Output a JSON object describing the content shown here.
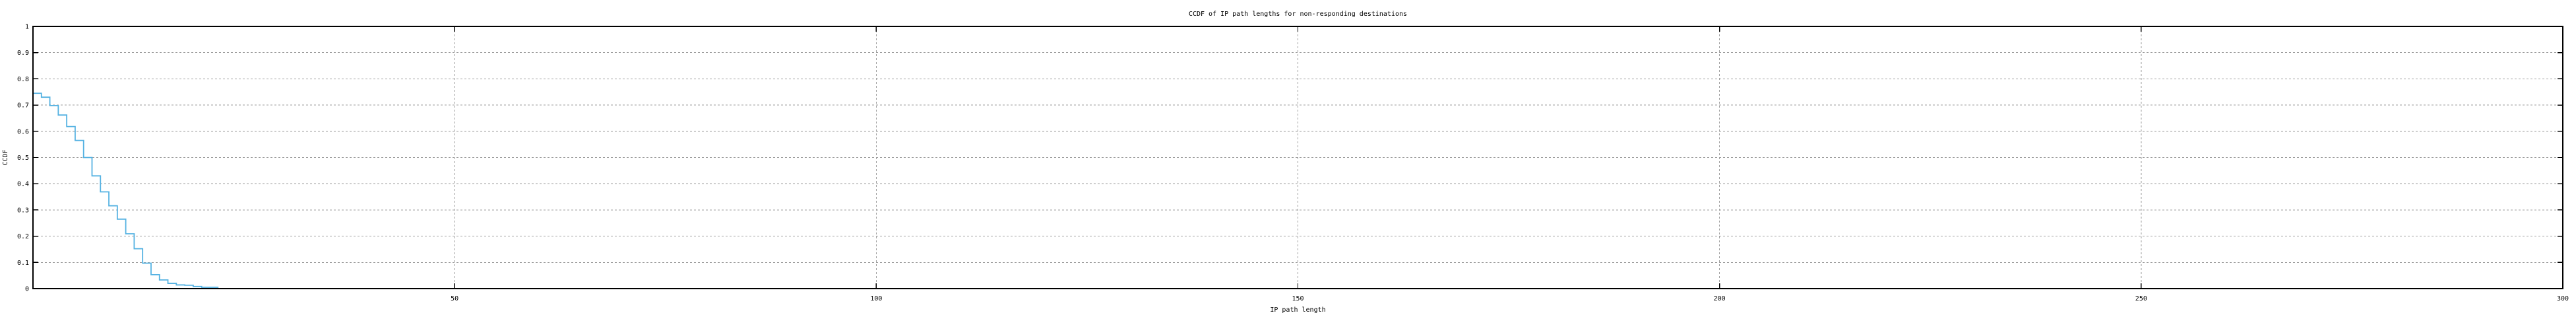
{
  "chart_data": {
    "type": "line",
    "style": "steps",
    "title": "CCDF of IP path lengths for non-responding destinations",
    "xlabel": "IP path length",
    "ylabel": "CCDF",
    "xlim": [
      0,
      300
    ],
    "ylim": [
      0,
      1
    ],
    "grid": {
      "show": true,
      "color": "#9e9e9e"
    },
    "legend": {
      "show": false
    },
    "x_ticks": [
      {
        "value": 50,
        "label": "50"
      },
      {
        "value": 100,
        "label": "100"
      },
      {
        "value": 150,
        "label": "150"
      },
      {
        "value": 200,
        "label": "200"
      },
      {
        "value": 250,
        "label": "250"
      },
      {
        "value": 300,
        "label": "300"
      }
    ],
    "y_ticks": [
      {
        "value": 0,
        "label": "0"
      },
      {
        "value": 0.1,
        "label": "0.1"
      },
      {
        "value": 0.2,
        "label": "0.2"
      },
      {
        "value": 0.3,
        "label": "0.3"
      },
      {
        "value": 0.4,
        "label": "0.4"
      },
      {
        "value": 0.5,
        "label": "0.5"
      },
      {
        "value": 0.6,
        "label": "0.6"
      },
      {
        "value": 0.7,
        "label": "0.7"
      },
      {
        "value": 0.8,
        "label": "0.8"
      },
      {
        "value": 0.9,
        "label": "0.9"
      },
      {
        "value": 1,
        "label": "1"
      }
    ],
    "series": [
      {
        "name": "CCDF of IP path lengths",
        "color": "#55b2e2",
        "mode": "steps",
        "x": [
          0,
          1,
          2,
          3,
          4,
          5,
          6,
          7,
          8,
          9,
          10,
          11,
          12,
          13,
          14,
          15,
          16,
          17,
          18,
          19,
          20,
          21,
          22
        ],
        "y": [
          0.745,
          0.73,
          0.698,
          0.662,
          0.618,
          0.565,
          0.5,
          0.43,
          0.369,
          0.316,
          0.265,
          0.209,
          0.152,
          0.097,
          0.053,
          0.033,
          0.02,
          0.014,
          0.013,
          0.008,
          0.005,
          0.005,
          0.005
        ]
      }
    ]
  },
  "frame": {
    "background": "#ffffff",
    "border_color": "#000000"
  }
}
